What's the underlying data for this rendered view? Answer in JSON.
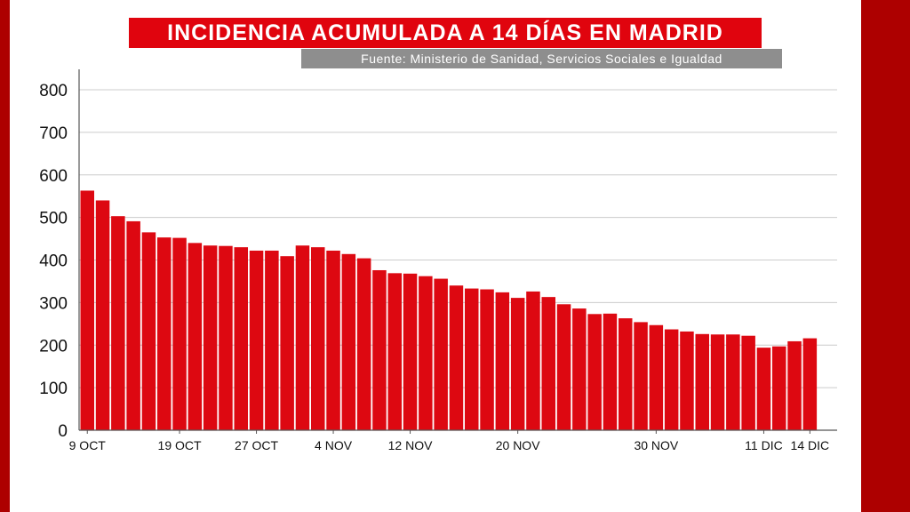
{
  "header": {
    "title": "INCIDENCIA ACUMULADA A 14 DÍAS EN MADRID",
    "source": "Fuente: Ministerio de Sanidad, Servicios Sociales e Igualdad"
  },
  "colors": {
    "bar": "#dd0811",
    "frame": "#ad0000",
    "title_bg": "#e0040e",
    "source_bg": "#8e8e8e",
    "grid": "#cccccc",
    "axis": "#555555"
  },
  "chart_data": {
    "type": "bar",
    "title": "INCIDENCIA ACUMULADA A 14 DÍAS EN MADRID",
    "xlabel": "",
    "ylabel": "",
    "ylim": [
      0,
      800
    ],
    "yticks": [
      0,
      100,
      200,
      300,
      400,
      500,
      600,
      700,
      800
    ],
    "grid": true,
    "legend": "none",
    "x_tick_labels": [
      {
        "label": "9 OCT",
        "index": 0
      },
      {
        "label": "19 OCT",
        "index": 6
      },
      {
        "label": "27 OCT",
        "index": 11
      },
      {
        "label": "4 NOV",
        "index": 16
      },
      {
        "label": "12 NOV",
        "index": 21
      },
      {
        "label": "20 NOV",
        "index": 28
      },
      {
        "label": "30 NOV",
        "index": 37
      },
      {
        "label": "11 DIC",
        "index": 44
      },
      {
        "label": "14 DIC",
        "index": 47
      }
    ],
    "values": [
      563,
      540,
      503,
      491,
      465,
      453,
      452,
      440,
      434,
      433,
      430,
      422,
      422,
      409,
      434,
      430,
      422,
      414,
      404,
      376,
      369,
      368,
      362,
      356,
      340,
      333,
      331,
      324,
      311,
      326,
      313,
      296,
      286,
      273,
      274,
      263,
      254,
      247,
      237,
      232,
      226,
      225,
      225,
      222,
      194,
      197,
      209,
      216
    ]
  }
}
